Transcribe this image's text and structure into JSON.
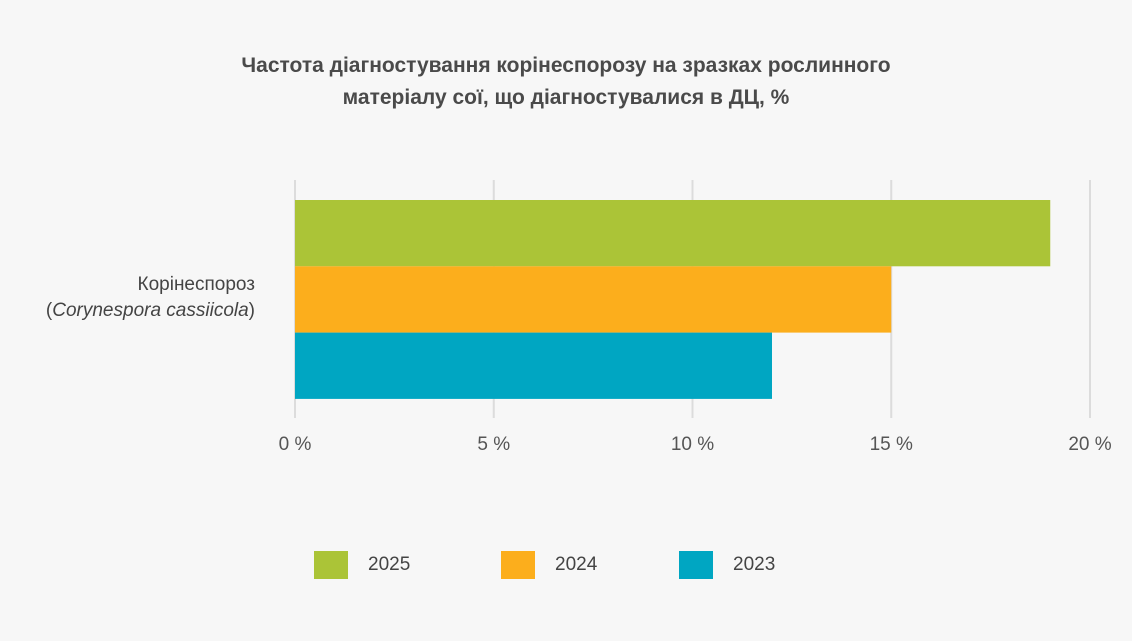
{
  "chart_data": {
    "type": "bar",
    "orientation": "horizontal",
    "title": "Частота діагностування корінеспорозу на зразках рослинного матеріалу сої, що діагностувалися в ДЦ, %",
    "title_lines": [
      "Частота діагностування корінеспорозу на зразках рослинного",
      "матеріалу сої, що діагностувалися в ДЦ, %"
    ],
    "categories": [
      "Корінеспороз (Corynespora cassiicola)"
    ],
    "category_label": {
      "line1": "Корінеспороз",
      "open": "(",
      "italic": "Corynespora cassiicola",
      "close": ")"
    },
    "series": [
      {
        "name": "2025",
        "values": [
          19
        ],
        "color": "#abc437"
      },
      {
        "name": "2024",
        "values": [
          15
        ],
        "color": "#fcae1c"
      },
      {
        "name": "2023",
        "values": [
          12
        ],
        "color": "#00a6c2"
      }
    ],
    "xlim": [
      0,
      20
    ],
    "x_ticks": [
      0,
      5,
      10,
      15,
      20
    ],
    "x_tick_labels": [
      "0 %",
      "5 %",
      "10 %",
      "15 %",
      "20 %"
    ],
    "grid": true,
    "legend_position": "bottom",
    "xlabel": "",
    "ylabel": ""
  }
}
